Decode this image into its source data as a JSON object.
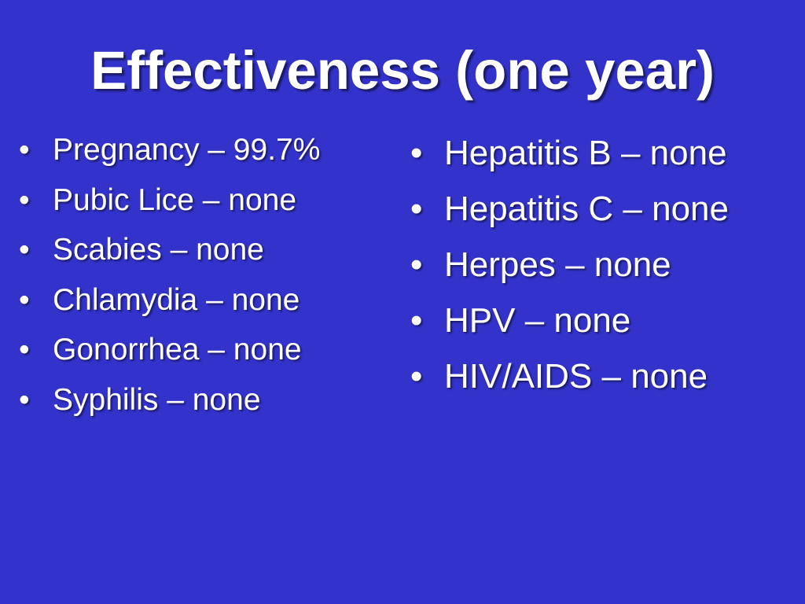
{
  "slide": {
    "title": "Effectiveness (one year)",
    "bullet_glyph": "•",
    "left_items": [
      "Pregnancy – 99.7%",
      "Pubic Lice – none",
      "Scabies – none",
      "Chlamydia – none",
      "Gonorrhea – none",
      "Syphilis – none"
    ],
    "right_items": [
      "Hepatitis B – none",
      "Hepatitis C – none",
      "Herpes – none",
      "HPV – none",
      "HIV/AIDS – none"
    ]
  },
  "colors": {
    "background": "#3333cc",
    "text": "#ffffff",
    "shadow": "#1a1a66"
  }
}
